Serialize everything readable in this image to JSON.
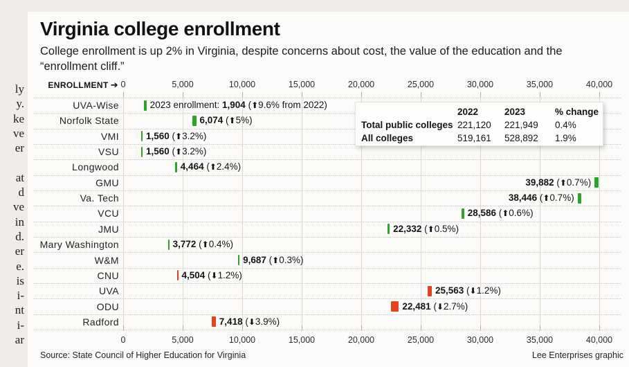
{
  "page": {
    "title": "Virginia college enrollment",
    "subtitle": "College enrollment is up 2% in Virginia, despite concerns about cost, the value of the education and the “enrollment cliff.”",
    "source": "Source: State Council of Higher Education for Virginia",
    "credit": "Lee Enterprises graphic",
    "left_column_fragments": [
      "ly",
      "y.",
      "ke",
      "ve",
      "er",
      "",
      "at",
      "d",
      "ve",
      "in",
      "d.",
      "er",
      "e.",
      "is",
      "i-",
      "nt",
      "i-",
      "ar"
    ]
  },
  "icons": {
    "up_arrow": "⬆",
    "down_arrow": "⬇",
    "right_arrow": "➔"
  },
  "colors": {
    "up": "#2da32b",
    "down": "#e2421d",
    "grid": "#dbd8d4"
  },
  "chart_data": {
    "type": "bar",
    "title": "Virginia college enrollment",
    "xlabel": "ENROLLMENT",
    "ylabel": "",
    "xlim": [
      0,
      40000
    ],
    "x_ticks": [
      0,
      5000,
      10000,
      15000,
      20000,
      25000,
      30000,
      35000,
      40000
    ],
    "x_tick_labels": [
      "0",
      "5,000",
      "10,000",
      "15,000",
      "20,000",
      "25,000",
      "30,000",
      "35,000",
      "40,000"
    ],
    "grid": true,
    "rows": [
      {
        "school": "UVA-Wise",
        "enrollment_2023": 1904,
        "value_label": "1,904",
        "change_pct": 9.6,
        "pct_label": "9.6%",
        "direction": "up",
        "prefix": "2023 enrollment: ",
        "suffix": " from 2022",
        "label_side": "right"
      },
      {
        "school": "Norfolk State",
        "enrollment_2023": 6074,
        "value_label": "6,074",
        "change_pct": 5.0,
        "pct_label": "5%",
        "direction": "up",
        "label_side": "right"
      },
      {
        "school": "VMI",
        "enrollment_2023": 1560,
        "value_label": "1,560",
        "change_pct": 3.2,
        "pct_label": "3.2%",
        "direction": "up",
        "label_side": "right"
      },
      {
        "school": "VSU",
        "enrollment_2023": 1560,
        "value_label": "1,560",
        "change_pct": 3.2,
        "pct_label": "3.2%",
        "direction": "up",
        "label_side": "right"
      },
      {
        "school": "Longwood",
        "enrollment_2023": 4464,
        "value_label": "4,464",
        "change_pct": 2.4,
        "pct_label": "2.4%",
        "direction": "up",
        "label_side": "right"
      },
      {
        "school": "GMU",
        "enrollment_2023": 39882,
        "value_label": "39,882",
        "change_pct": 0.7,
        "pct_label": "0.7%",
        "direction": "up",
        "label_side": "left"
      },
      {
        "school": "Va. Tech",
        "enrollment_2023": 38446,
        "value_label": "38,446",
        "change_pct": 0.7,
        "pct_label": "0.7%",
        "direction": "up",
        "label_side": "left"
      },
      {
        "school": "VCU",
        "enrollment_2023": 28586,
        "value_label": "28,586",
        "change_pct": 0.6,
        "pct_label": "0.6%",
        "direction": "up",
        "label_side": "right"
      },
      {
        "school": "JMU",
        "enrollment_2023": 22332,
        "value_label": "22,332",
        "change_pct": 0.5,
        "pct_label": "0.5%",
        "direction": "up",
        "label_side": "right"
      },
      {
        "school": "Mary Washington",
        "enrollment_2023": 3772,
        "value_label": "3,772",
        "change_pct": 0.4,
        "pct_label": "0.4%",
        "direction": "up",
        "label_side": "right"
      },
      {
        "school": "W&M",
        "enrollment_2023": 9687,
        "value_label": "9,687",
        "change_pct": 0.3,
        "pct_label": "0.3%",
        "direction": "up",
        "label_side": "right"
      },
      {
        "school": "CNU",
        "enrollment_2023": 4504,
        "value_label": "4,504",
        "change_pct": 1.2,
        "pct_label": "1.2%",
        "direction": "down",
        "label_side": "right"
      },
      {
        "school": "UVA",
        "enrollment_2023": 25563,
        "value_label": "25,563",
        "change_pct": 1.2,
        "pct_label": "1.2%",
        "direction": "down",
        "label_side": "right"
      },
      {
        "school": "ODU",
        "enrollment_2023": 22481,
        "value_label": "22,481",
        "change_pct": 2.7,
        "pct_label": "2.7%",
        "direction": "down",
        "label_side": "right"
      },
      {
        "school": "Radford",
        "enrollment_2023": 7418,
        "value_label": "7,418",
        "change_pct": 3.9,
        "pct_label": "3.9%",
        "direction": "down",
        "label_side": "right"
      }
    ],
    "summary_table": {
      "headers": [
        "",
        "2022",
        "2023",
        "% change"
      ],
      "rows": [
        [
          "Total public colleges",
          "221,120",
          "221,949",
          "0.4%"
        ],
        [
          "All colleges",
          "519,161",
          "528,892",
          "1.9%"
        ]
      ]
    }
  }
}
